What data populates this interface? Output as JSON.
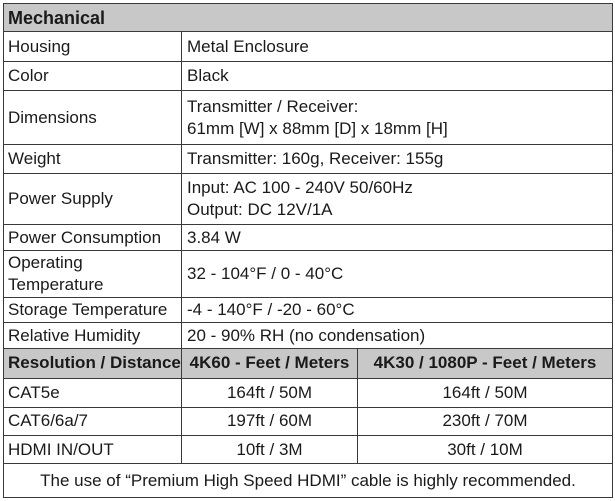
{
  "section_title": "Mechanical",
  "mechanical_rows": [
    {
      "label": "Housing",
      "value_lines": [
        "Metal Enclosure"
      ]
    },
    {
      "label": "Color",
      "value_lines": [
        "Black"
      ]
    },
    {
      "label": "Dimensions",
      "value_lines": [
        "Transmitter / Receiver:",
        "61mm [W] x 88mm [D] x 18mm [H]"
      ]
    },
    {
      "label": "Weight",
      "value_lines": [
        "Transmitter: 160g, Receiver: 155g"
      ]
    },
    {
      "label": "Power Supply",
      "value_lines": [
        "Input: AC 100 - 240V 50/60Hz",
        "Output: DC 12V/1A"
      ]
    },
    {
      "label": "Power Consumption",
      "value_lines": [
        "3.84 W"
      ]
    },
    {
      "label": "Operating Temperature",
      "label_lines": [
        "Operating",
        "Temperature"
      ],
      "value_lines": [
        "32 - 104°F / 0 - 40°C"
      ]
    },
    {
      "label": "Storage Temperature",
      "value_lines": [
        "-4 - 140°F / -20 - 60°C"
      ]
    },
    {
      "label": "Relative Humidity",
      "value_lines": [
        "20 - 90% RH (no condensation)"
      ]
    }
  ],
  "distance_header": {
    "col1": "Resolution / Distance",
    "col2": "4K60 - Feet / Meters",
    "col3": "4K30 / 1080P - Feet / Meters"
  },
  "distance_rows": [
    {
      "cable": "CAT5e",
      "k60": "164ft / 50M",
      "k30": "164ft / 50M"
    },
    {
      "cable": "CAT6/6a/7",
      "k60": "197ft / 60M",
      "k30": "230ft / 70M"
    },
    {
      "cable": "HDMI IN/OUT",
      "k60": "10ft / 3M",
      "k30": "30ft / 10M"
    }
  ],
  "note": "The use of “Premium High Speed HDMI” cable is highly recommended."
}
